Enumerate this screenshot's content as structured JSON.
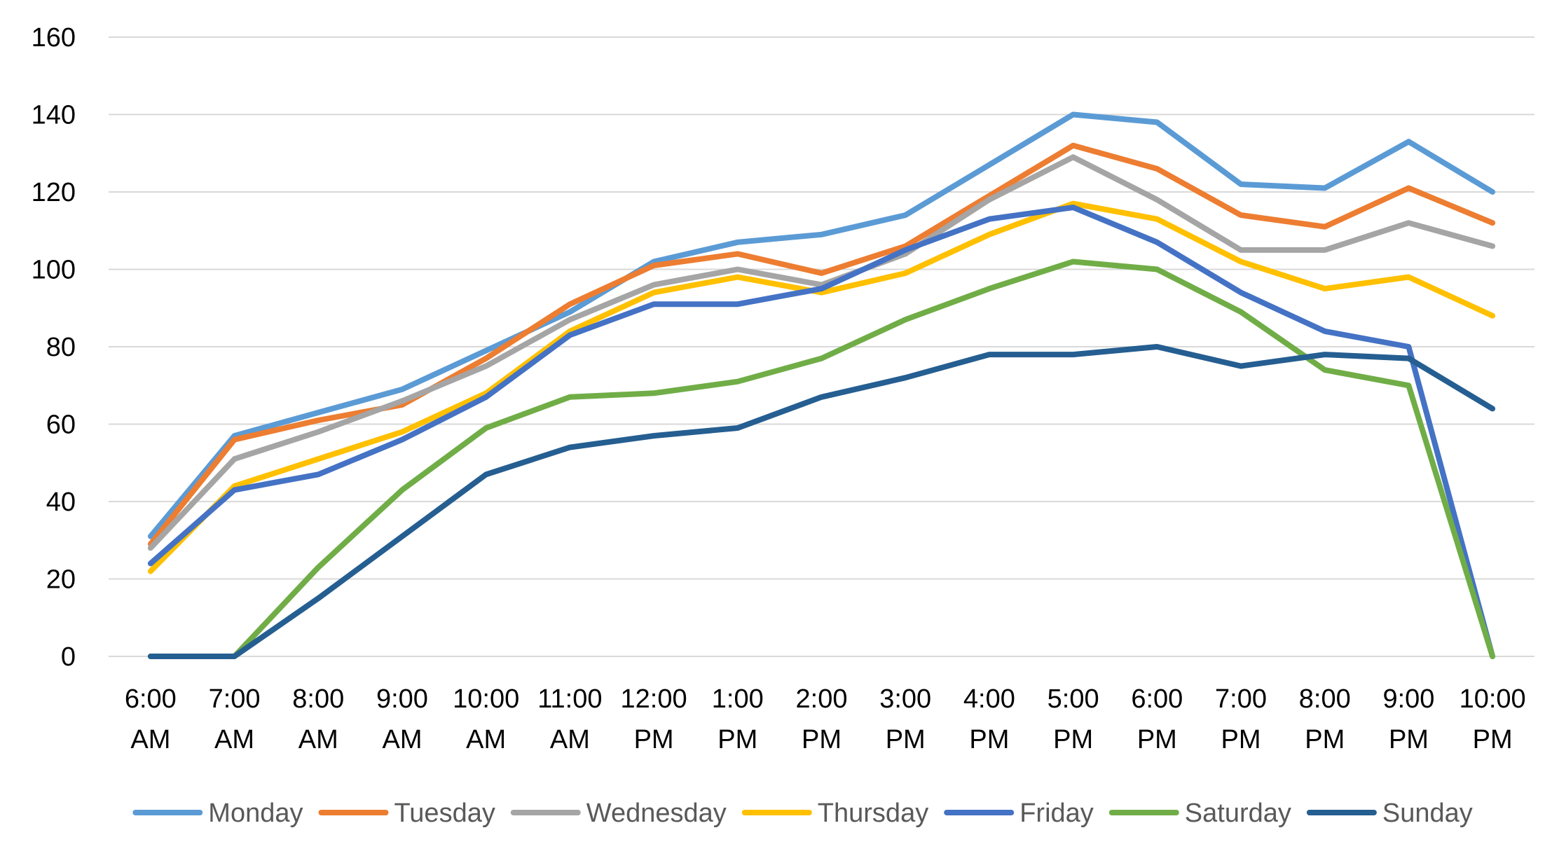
{
  "chart_data": {
    "type": "line",
    "title": "",
    "xlabel": "",
    "ylabel": "",
    "ylim": [
      0,
      160
    ],
    "y_ticks": [
      0,
      20,
      40,
      60,
      80,
      100,
      120,
      140,
      160
    ],
    "grid": true,
    "legend_position": "bottom",
    "categories": [
      [
        "6:00",
        "AM"
      ],
      [
        "7:00",
        "AM"
      ],
      [
        "8:00",
        "AM"
      ],
      [
        "9:00",
        "AM"
      ],
      [
        "10:00",
        "AM"
      ],
      [
        "11:00",
        "AM"
      ],
      [
        "12:00",
        "PM"
      ],
      [
        "1:00",
        "PM"
      ],
      [
        "2:00",
        "PM"
      ],
      [
        "3:00",
        "PM"
      ],
      [
        "4:00",
        "PM"
      ],
      [
        "5:00",
        "PM"
      ],
      [
        "6:00",
        "PM"
      ],
      [
        "7:00",
        "PM"
      ],
      [
        "8:00",
        "PM"
      ],
      [
        "9:00",
        "PM"
      ],
      [
        "10:00",
        "PM"
      ]
    ],
    "series": [
      {
        "name": "Monday",
        "color": "#5b9bd5",
        "values": [
          31,
          57,
          63,
          69,
          79,
          89,
          102,
          107,
          109,
          114,
          127,
          140,
          138,
          122,
          121,
          133,
          120
        ]
      },
      {
        "name": "Tuesday",
        "color": "#ed7d31",
        "values": [
          29,
          56,
          61,
          65,
          77,
          91,
          101,
          104,
          99,
          106,
          119,
          132,
          126,
          114,
          111,
          121,
          112
        ]
      },
      {
        "name": "Wednesday",
        "color": "#a5a5a5",
        "values": [
          28,
          51,
          58,
          66,
          75,
          87,
          96,
          100,
          96,
          104,
          118,
          129,
          118,
          105,
          105,
          112,
          106
        ]
      },
      {
        "name": "Thursday",
        "color": "#ffc000",
        "values": [
          22,
          44,
          51,
          58,
          68,
          84,
          94,
          98,
          94,
          99,
          109,
          117,
          113,
          102,
          95,
          98,
          88
        ]
      },
      {
        "name": "Friday",
        "color": "#4472c4",
        "values": [
          24,
          43,
          47,
          56,
          67,
          83,
          91,
          91,
          95,
          105,
          113,
          116,
          107,
          94,
          84,
          80,
          0
        ]
      },
      {
        "name": "Saturday",
        "color": "#70ad47",
        "values": [
          0,
          0,
          23,
          43,
          59,
          67,
          68,
          71,
          77,
          87,
          95,
          102,
          100,
          89,
          74,
          70,
          0
        ]
      },
      {
        "name": "Sunday",
        "color": "#255e91",
        "values": [
          0,
          0,
          15,
          31,
          47,
          54,
          57,
          59,
          67,
          72,
          78,
          78,
          80,
          75,
          78,
          77,
          64
        ]
      }
    ]
  }
}
